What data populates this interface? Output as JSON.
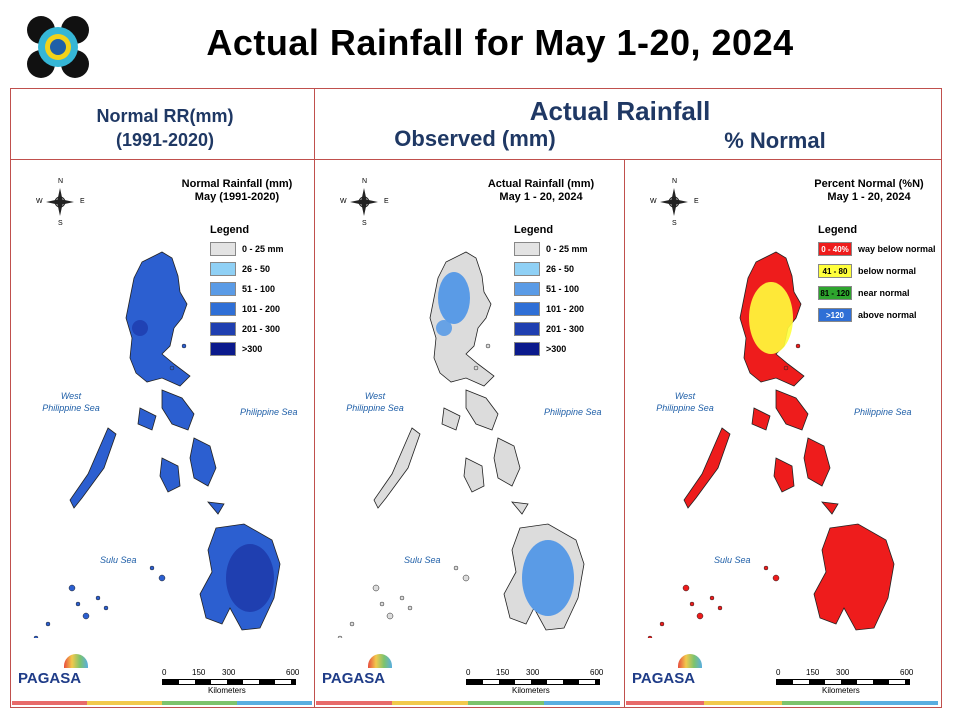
{
  "header": {
    "title": "Actual Rainfall for May 1-20, 2024"
  },
  "columns": {
    "normal": {
      "line1": "Normal RR(mm)",
      "line2": "(1991-2020)"
    },
    "actual": {
      "title": "Actual Rainfall",
      "observed": "Observed (mm)",
      "percent": "% Normal"
    }
  },
  "maps": [
    {
      "title_line1": "Normal Rainfall (mm)",
      "title_line2": "May (1991-2020)",
      "legend_title": "Legend",
      "legend": [
        {
          "label": "0 - 25 mm",
          "color": "#e3e3e3"
        },
        {
          "label": "26 - 50",
          "color": "#8fd0f5"
        },
        {
          "label": "51 - 100",
          "color": "#5a9be6"
        },
        {
          "label": "101 - 200",
          "color": "#2f6fd6"
        },
        {
          "label": "201 - 300",
          "color": "#1f3fb0"
        },
        {
          "label": ">300",
          "color": "#0b1a8c"
        }
      ],
      "dominant_color": "#2c5fd0",
      "dark_color": "#1f3fb0"
    },
    {
      "title_line1": "Actual Rainfall (mm)",
      "title_line2": "May 1 - 20, 2024",
      "legend_title": "Legend",
      "legend": [
        {
          "label": "0 - 25 mm",
          "color": "#e3e3e3"
        },
        {
          "label": "26 - 50",
          "color": "#8fd0f5"
        },
        {
          "label": "51 - 100",
          "color": "#5a9be6"
        },
        {
          "label": "101 - 200",
          "color": "#2f6fd6"
        },
        {
          "label": "201 - 300",
          "color": "#1f3fb0"
        },
        {
          "label": ">300",
          "color": "#0b1a8c"
        }
      ],
      "dominant_color": "#dcdcdc",
      "dark_color": "#5a9be6"
    },
    {
      "title_line1": "Percent Normal (%N)",
      "title_line2": "May 1 - 20, 2024",
      "legend_title": "Legend",
      "legend": [
        {
          "swatch_text": "0 - 40%",
          "label": "way below normal",
          "color": "#ee1c1c",
          "text_color": "#ffffff"
        },
        {
          "swatch_text": "41 - 80",
          "label": "below normal",
          "color": "#ffff3c",
          "text_color": "#000000"
        },
        {
          "swatch_text": "81 - 120",
          "label": "near normal",
          "color": "#2ea52e",
          "text_color": "#000000"
        },
        {
          "swatch_text": ">120",
          "label": "above normal",
          "color": "#2f6fd6",
          "text_color": "#ffffff"
        }
      ],
      "dominant_color": "#ee1c1c",
      "dark_color": "#ffff3c"
    }
  ],
  "sea_labels": {
    "west_line1": "West",
    "west_line2": "Philippine Sea",
    "east": "Philippine Sea",
    "sulu": "Sulu Sea"
  },
  "compass": {
    "n": "N",
    "s": "S",
    "e": "E",
    "w": "W"
  },
  "scale_bar": {
    "ticks": [
      "0",
      "150",
      "300",
      "600"
    ],
    "unit": "Kilometers"
  },
  "logo": {
    "text": "PAGASA"
  },
  "footer_colors": [
    "#e86a6a",
    "#f2c94c",
    "#7dc36d",
    "#5aaee0"
  ]
}
